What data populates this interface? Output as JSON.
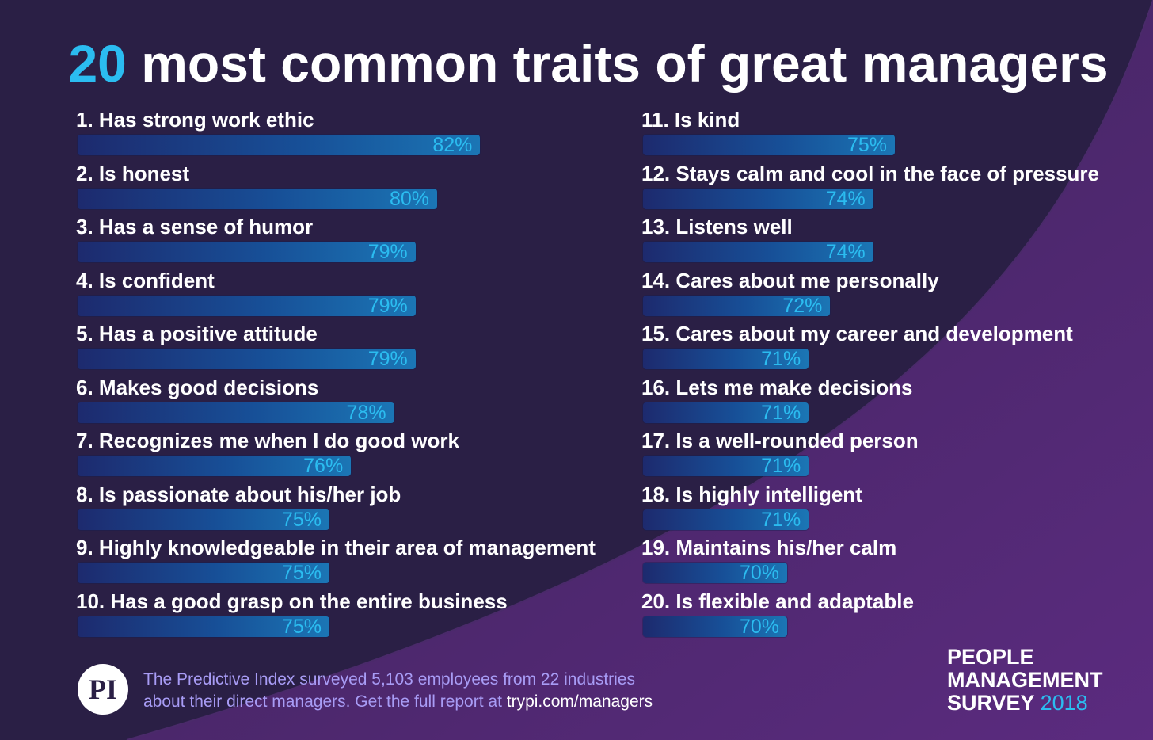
{
  "title": {
    "number": "20",
    "rest": "most common traits of great managers"
  },
  "chart_data": {
    "type": "bar",
    "categories": [
      "1. Has strong work ethic",
      "2. Is honest",
      "3. Has a sense of humor",
      "4. Is confident",
      "5. Has a positive attitude",
      "6. Makes good decisions",
      "7. Recognizes me when I do good work",
      "8. Is passionate about his/her job",
      "9. Highly knowledgeable in their area of management",
      "10. Has a good grasp on the entire business",
      "11. Is kind",
      "12. Stays calm and cool in the face of pressure",
      "13. Listens well",
      "14. Cares about me personally",
      "15. Cares about my career and development",
      "16. Lets me make decisions",
      "17. Is a well-rounded person",
      "18. Is highly intelligent",
      "19. Maintains his/her calm",
      "20. Is flexible and adaptable"
    ],
    "values": [
      82,
      80,
      79,
      79,
      79,
      78,
      76,
      75,
      75,
      75,
      75,
      74,
      74,
      72,
      71,
      71,
      71,
      71,
      70,
      70
    ],
    "value_labels": [
      "82%",
      "80%",
      "79%",
      "79%",
      "79%",
      "78%",
      "76%",
      "75%",
      "75%",
      "75%",
      "75%",
      "74%",
      "74%",
      "72%",
      "71%",
      "71%",
      "71%",
      "71%",
      "70%",
      "70%"
    ],
    "title": "20 most common traits of great managers",
    "xlabel": "",
    "ylabel": "",
    "colors": {
      "bar_start": "#1d2a6e",
      "bar_end": "#1b76b5",
      "value_text": "#2bbcf0",
      "label_text": "#ffffff"
    }
  },
  "footer": {
    "logo_text": "PI",
    "line1": "The Predictive Index surveyed 5,103 employees from 22 industries",
    "line2_prefix": "about their direct managers. Get the full report at ",
    "line2_url": "trypi.com/managers",
    "survey_line1": "PEOPLE",
    "survey_line2": "MANAGEMENT",
    "survey_line3": "SURVEY",
    "survey_year": "2018"
  },
  "colors": {
    "background": "#2a1f45",
    "accent": "#2bbcf0",
    "footnote": "#a89cf5"
  }
}
